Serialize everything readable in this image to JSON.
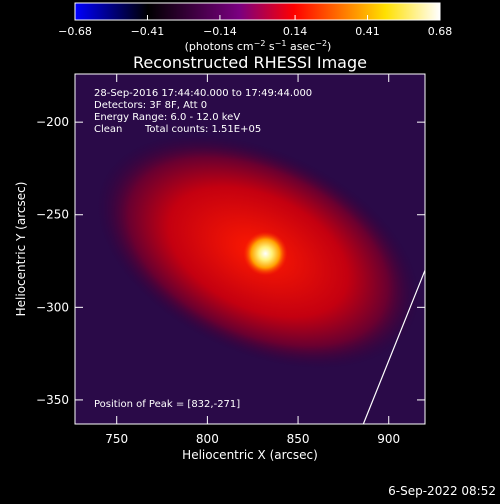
{
  "chart_data": {
    "type": "heatmap",
    "title": "Reconstructed RHESSI Image",
    "xlabel": "Heliocentric X (arcsec)",
    "ylabel": "Heliocentric Y (arcsec)",
    "xlim": [
      727,
      920
    ],
    "ylim": [
      -363,
      -174
    ],
    "xticks": [
      750,
      800,
      850,
      900
    ],
    "yticks": [
      -200,
      -250,
      -300,
      -350
    ],
    "colorbar": {
      "min": -0.68,
      "max": 0.68,
      "ticks": [
        -0.68,
        -0.41,
        -0.14,
        0.14,
        0.41,
        0.68
      ],
      "tick_labels": [
        "−0.68",
        "−0.41",
        "−0.14",
        "0.14",
        "0.41",
        "0.68"
      ],
      "colors": [
        "#0000ff",
        "#000000",
        "#7a0080",
        "#ff0000",
        "#ffe000",
        "#ffffff"
      ]
    },
    "annotations": {
      "time_range": "28-Sep-2016 17:44:40.000 to 17:49:44.000",
      "detectors": "Detectors: 3F 8F, Att 0",
      "energy_range": "Energy Range: 6.0 - 12.0 keV",
      "clean_label": "Clean",
      "total_counts": "Total counts: 1.51E+05",
      "peak": "Position of Peak = [832,-271]"
    },
    "peak": {
      "x": 832,
      "y": -271
    },
    "source_ellipse": {
      "center_x": 828,
      "center_y": -270,
      "semi_major": 95,
      "semi_minor": 55,
      "angle_deg": -25
    },
    "limb_line": [
      [
        886,
        -363
      ],
      [
        920,
        -280
      ]
    ]
  },
  "footer": {
    "timestamp": "6-Sep-2022 08:52"
  }
}
